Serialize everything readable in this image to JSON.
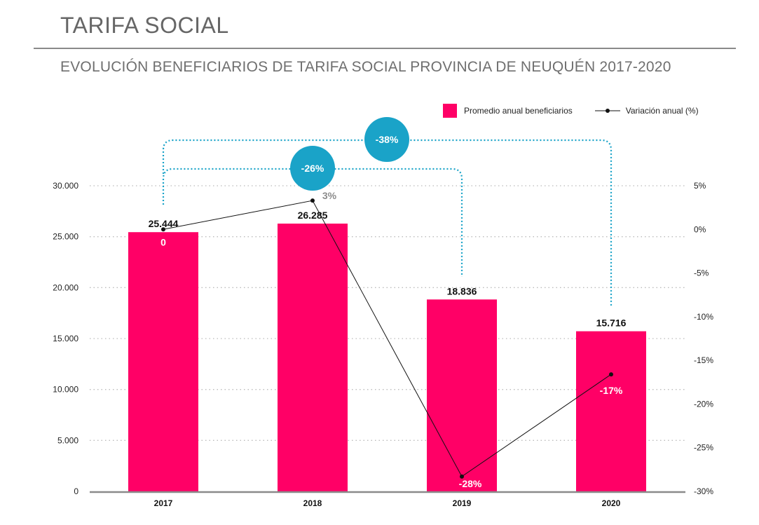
{
  "header": {
    "title": "TARIFA SOCIAL",
    "subtitle": "EVOLUCIÓN BENEFICIARIOS DE TARIFA SOCIAL PROVINCIA DE NEUQUÉN 2017-2020"
  },
  "legend": {
    "bars_label": "Promedio anual beneficiarios",
    "line_label": "Variación anual (%)"
  },
  "colors": {
    "bar": "#ff0066",
    "line": "#111111",
    "bracket": "#1aa3c8",
    "grid": "#bbbbbb",
    "axis": "#8a8a8a"
  },
  "chart_data": {
    "type": "bar",
    "categories": [
      "2017",
      "2018",
      "2019",
      "2020"
    ],
    "series": [
      {
        "name": "Promedio anual beneficiarios",
        "type": "bar",
        "axis": "left",
        "values": [
          25444,
          26285,
          18836,
          15716
        ],
        "labels": [
          "25.444",
          "26.285",
          "18.836",
          "15.716"
        ]
      },
      {
        "name": "Variación anual (%)",
        "type": "line",
        "axis": "right",
        "values": [
          0,
          3.3,
          -28.3,
          -16.6
        ],
        "labels": [
          "0",
          "3%",
          "-28%",
          "-17%"
        ]
      }
    ],
    "y_left": {
      "range": [
        0,
        30000
      ],
      "ticks": [
        0,
        5000,
        10000,
        15000,
        20000,
        25000,
        30000
      ],
      "tick_labels": [
        "0",
        "5.000",
        "10.000",
        "15.000",
        "20.000",
        "25.000",
        "30.000"
      ]
    },
    "y_right": {
      "range": [
        -30,
        5
      ],
      "ticks": [
        5,
        0,
        -5,
        -10,
        -15,
        -20,
        -25,
        -30
      ],
      "tick_labels": [
        "5%",
        "0%",
        "-5%",
        "-10%",
        "-15%",
        "-20%",
        "-25%",
        "-30%"
      ]
    },
    "annotations": [
      {
        "from": "2017",
        "to": "2019",
        "label": "-26%"
      },
      {
        "from": "2017",
        "to": "2020",
        "label": "-38%"
      }
    ],
    "grid": true,
    "legend_position": "top-right"
  }
}
